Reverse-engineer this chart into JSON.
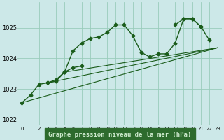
{
  "title": "Graphe pression niveau de la mer (hPa)",
  "bg_color": "#cce8e8",
  "plot_bg_color": "#cce8e8",
  "grid_color": "#99ccbb",
  "line_color": "#1a5c1a",
  "footer_bg": "#2d6b2d",
  "footer_text_color": "#cce8cc",
  "xlim": [
    -0.5,
    23.5
  ],
  "ylim": [
    1021.8,
    1025.85
  ],
  "yticks": [
    1022,
    1023,
    1024,
    1025
  ],
  "xtick_labels": [
    "0",
    "1",
    "2",
    "3",
    "4",
    "5",
    "6",
    "7",
    "8",
    "9",
    "10",
    "11",
    "12",
    "13",
    "14",
    "15",
    "16",
    "17",
    "18",
    "19",
    "20",
    "21",
    "22",
    "23"
  ],
  "series_jagged_1": {
    "x": [
      0,
      1,
      2,
      3,
      4,
      5,
      6,
      7
    ],
    "y": [
      1022.55,
      1022.8,
      1023.15,
      1023.2,
      1023.25,
      1023.55,
      1023.7,
      1023.75
    ]
  },
  "series_jagged_2": {
    "x": [
      3,
      4,
      5,
      6,
      7,
      8,
      9,
      10,
      11,
      12,
      13,
      14,
      15,
      16,
      17,
      18,
      19,
      20,
      21
    ],
    "y": [
      1023.2,
      1023.3,
      1023.55,
      1024.25,
      1024.5,
      1024.65,
      1024.7,
      1024.85,
      1025.1,
      1025.1,
      1024.75,
      1024.2,
      1024.05,
      1024.15,
      1024.15,
      1024.5,
      1025.3,
      1025.3,
      1025.05
    ]
  },
  "series_jagged_3": {
    "x": [
      18,
      19,
      20,
      21,
      22
    ],
    "y": [
      1025.1,
      1025.3,
      1025.3,
      1025.05,
      1024.6
    ]
  },
  "line_straight_1": {
    "x": [
      0,
      23
    ],
    "y": [
      1022.55,
      1024.35
    ]
  },
  "line_straight_2": {
    "x": [
      3,
      23
    ],
    "y": [
      1023.2,
      1024.35
    ]
  },
  "line_straight_3": {
    "x": [
      5,
      23
    ],
    "y": [
      1023.55,
      1024.35
    ]
  }
}
